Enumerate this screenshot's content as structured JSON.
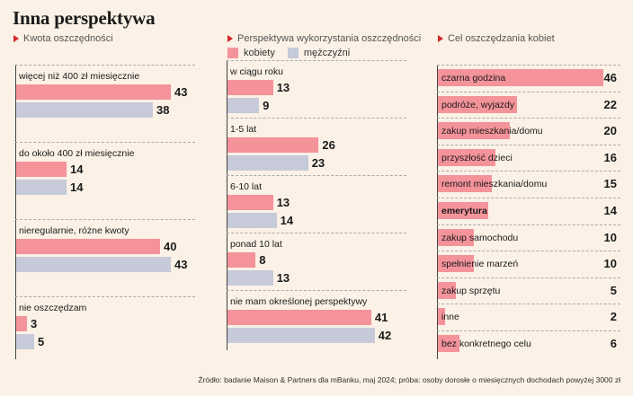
{
  "title": "Inna perspektywa",
  "legend": {
    "women": "kobiety",
    "men": "mężczyźni"
  },
  "colors": {
    "women": "#f4939a",
    "men": "#c6cad9",
    "accent": "#d7262c",
    "background": "#fbf1e6"
  },
  "source": "Źródło: badanie Maison & Partners dla mBanku, maj 2024; próba: osoby dorosłe o miesięcznych dochodach powyżej 3000 zł",
  "chart_data": [
    {
      "type": "bar",
      "title": "Kwota oszczędności",
      "categories": [
        "więcej niż 400 zł miesięcznie",
        "do około 400 zł miesięcznie",
        "nieregularnie, różne kwoty",
        "nie oszczędzam"
      ],
      "series": [
        {
          "name": "kobiety",
          "values": [
            43,
            14,
            40,
            3
          ]
        },
        {
          "name": "mężczyźni",
          "values": [
            38,
            14,
            43,
            5
          ]
        }
      ],
      "orientation": "horizontal"
    },
    {
      "type": "bar",
      "title": "Perspektywa wykorzystania oszczędności",
      "categories": [
        "w ciągu roku",
        "1-5 lat",
        "6-10 lat",
        "ponad 10 lat",
        "nie mam określonej perspektywy"
      ],
      "series": [
        {
          "name": "kobiety",
          "values": [
            13,
            26,
            13,
            8,
            41
          ]
        },
        {
          "name": "mężczyźni",
          "values": [
            9,
            23,
            14,
            13,
            42
          ]
        }
      ],
      "orientation": "horizontal",
      "legend": "top"
    },
    {
      "type": "bar",
      "title": "Cel oszczędzania kobiet",
      "categories": [
        "czarna godzina",
        "podróże, wyjazdy",
        "zakup mieszkania/domu",
        "przyszłość dzieci",
        "remont mieszkania/domu",
        "emerytura",
        "zakup samochodu",
        "spełnienie marzeń",
        "zakup sprzętu",
        "inne",
        "bez konkretnego celu"
      ],
      "values": [
        46,
        22,
        20,
        16,
        15,
        14,
        10,
        10,
        5,
        2,
        6
      ],
      "highlight": "emerytura",
      "orientation": "horizontal"
    }
  ]
}
